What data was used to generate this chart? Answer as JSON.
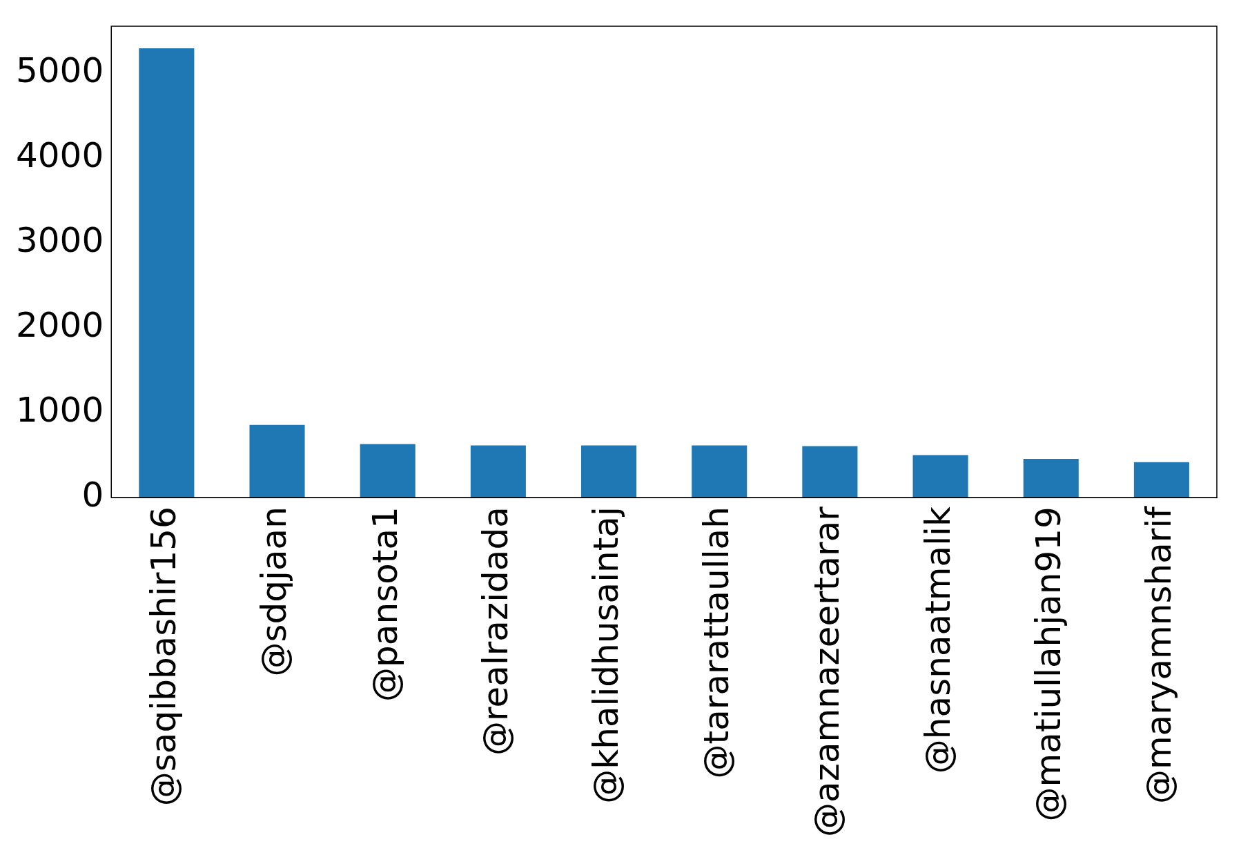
{
  "chart_data": {
    "type": "bar",
    "categories": [
      "@saqibbashir156",
      "@sdqjaan",
      "@pansota1",
      "@realrazidada",
      "@khalidhusaintaj",
      "@tararattaullah",
      "@azamnazeertarar",
      "@hasnaatmalik",
      "@matiullahjan919",
      "@maryamnsharif"
    ],
    "values": [
      5290,
      856,
      631,
      614,
      614,
      614,
      606,
      500,
      455,
      417
    ],
    "color": "#1f77b4",
    "ylim": [
      0,
      5550
    ],
    "yticks": [
      0,
      1000,
      2000,
      3000,
      4000,
      5000
    ],
    "grid": false,
    "legend": false
  }
}
